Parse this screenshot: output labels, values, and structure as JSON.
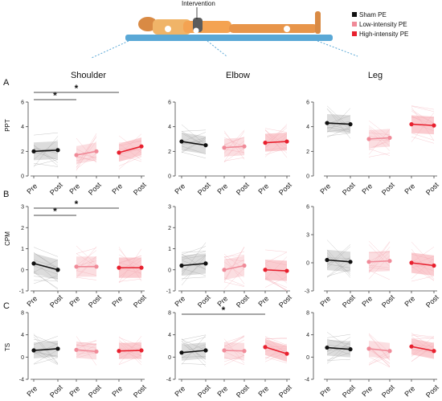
{
  "figure": {
    "intervention_label": "Intervention",
    "legend": [
      {
        "label": "Sham PE",
        "color": "#111111"
      },
      {
        "label": "Low-intensity PE",
        "color": "#f08a98"
      },
      {
        "label": "High-intensity PE",
        "color": "#e8202e"
      }
    ],
    "column_headers": [
      "Shoulder",
      "Elbow",
      "Leg"
    ],
    "row_labels": [
      "A",
      "B",
      "C"
    ],
    "y_labels": [
      "PPT",
      "CPM",
      "TS"
    ],
    "x_tick_labels": [
      "Pre",
      "Post",
      "Pre",
      "Post",
      "Pre",
      "Post"
    ],
    "significance_marker": "*"
  },
  "chart_data": [
    {
      "type": "line",
      "panel": "A-Shoulder",
      "ylabel": "PPT",
      "ylim": [
        0,
        6
      ],
      "yticks": [
        0,
        2,
        4,
        6
      ],
      "categories": [
        "Pre",
        "Post"
      ],
      "series": [
        {
          "name": "Sham PE",
          "values": [
            2.0,
            2.1
          ]
        },
        {
          "name": "Low-intensity PE",
          "values": [
            1.7,
            2.0
          ]
        },
        {
          "name": "High-intensity PE",
          "values": [
            1.9,
            2.4
          ]
        }
      ],
      "annotations": [
        {
          "text": "*",
          "from": "Sham PE Pre",
          "to": "Low-intensity PE Pre"
        },
        {
          "text": "*",
          "from": "Sham PE Pre",
          "to": "High-intensity PE Pre"
        }
      ]
    },
    {
      "type": "line",
      "panel": "A-Elbow",
      "ylim": [
        0,
        6
      ],
      "yticks": [
        0,
        2,
        4,
        6
      ],
      "categories": [
        "Pre",
        "Post"
      ],
      "series": [
        {
          "name": "Sham PE",
          "values": [
            2.8,
            2.5
          ]
        },
        {
          "name": "Low-intensity PE",
          "values": [
            2.3,
            2.4
          ]
        },
        {
          "name": "High-intensity PE",
          "values": [
            2.7,
            2.8
          ]
        }
      ],
      "annotations": []
    },
    {
      "type": "line",
      "panel": "A-Leg",
      "ylim": [
        0,
        6
      ],
      "yticks": [
        0,
        2,
        4,
        6
      ],
      "categories": [
        "Pre",
        "Post"
      ],
      "series": [
        {
          "name": "Sham PE",
          "values": [
            4.3,
            4.2
          ]
        },
        {
          "name": "Low-intensity PE",
          "values": [
            3.0,
            3.1
          ]
        },
        {
          "name": "High-intensity PE",
          "values": [
            4.2,
            4.1
          ]
        }
      ],
      "annotations": []
    },
    {
      "type": "line",
      "panel": "B-Shoulder",
      "ylabel": "CPM",
      "ylim": [
        -1,
        3
      ],
      "yticks": [
        -1,
        0,
        1,
        2,
        3
      ],
      "categories": [
        "Pre",
        "Post"
      ],
      "series": [
        {
          "name": "Sham PE",
          "values": [
            0.3,
            0.0
          ]
        },
        {
          "name": "Low-intensity PE",
          "values": [
            0.15,
            0.15
          ]
        },
        {
          "name": "High-intensity PE",
          "values": [
            0.1,
            0.1
          ]
        }
      ],
      "annotations": [
        {
          "text": "*",
          "from": "Sham PE Pre",
          "to": "Low-intensity PE Pre"
        },
        {
          "text": "*",
          "from": "Sham PE Pre",
          "to": "High-intensity PE Pre"
        }
      ]
    },
    {
      "type": "line",
      "panel": "B-Elbow",
      "ylim": [
        -1,
        3
      ],
      "yticks": [
        -1,
        0,
        1,
        2,
        3
      ],
      "categories": [
        "Pre",
        "Post"
      ],
      "series": [
        {
          "name": "Sham PE",
          "values": [
            0.2,
            0.3
          ]
        },
        {
          "name": "Low-intensity PE",
          "values": [
            0.0,
            0.2
          ]
        },
        {
          "name": "High-intensity PE",
          "values": [
            0.0,
            -0.05
          ]
        }
      ],
      "annotations": []
    },
    {
      "type": "line",
      "panel": "B-Leg",
      "ylim": [
        -3,
        6
      ],
      "yticks": [
        -3,
        0,
        3,
        6
      ],
      "categories": [
        "Pre",
        "Post"
      ],
      "series": [
        {
          "name": "Sham PE",
          "values": [
            0.3,
            0.1
          ]
        },
        {
          "name": "Low-intensity PE",
          "values": [
            0.1,
            0.2
          ]
        },
        {
          "name": "High-intensity PE",
          "values": [
            0.0,
            -0.3
          ]
        }
      ],
      "annotations": []
    },
    {
      "type": "line",
      "panel": "C-Shoulder",
      "ylabel": "TS",
      "ylim": [
        -4,
        8
      ],
      "yticks": [
        -4,
        0,
        4,
        8
      ],
      "categories": [
        "Pre",
        "Post"
      ],
      "series": [
        {
          "name": "Sham PE",
          "values": [
            1.2,
            1.5
          ]
        },
        {
          "name": "Low-intensity PE",
          "values": [
            1.3,
            1.0
          ]
        },
        {
          "name": "High-intensity PE",
          "values": [
            1.1,
            1.2
          ]
        }
      ],
      "annotations": []
    },
    {
      "type": "line",
      "panel": "C-Elbow",
      "ylim": [
        -4,
        8
      ],
      "yticks": [
        -4,
        0,
        4,
        8
      ],
      "categories": [
        "Pre",
        "Post"
      ],
      "series": [
        {
          "name": "Sham PE",
          "values": [
            0.8,
            1.2
          ]
        },
        {
          "name": "Low-intensity PE",
          "values": [
            1.2,
            1.1
          ]
        },
        {
          "name": "High-intensity PE",
          "values": [
            1.8,
            0.6
          ]
        }
      ],
      "annotations": [
        {
          "text": "*",
          "from": "Sham PE Pre",
          "to": "High-intensity PE Pre"
        }
      ]
    },
    {
      "type": "line",
      "panel": "C-Leg",
      "ylim": [
        -4,
        8
      ],
      "yticks": [
        -4,
        0,
        4,
        8
      ],
      "categories": [
        "Pre",
        "Post"
      ],
      "series": [
        {
          "name": "Sham PE",
          "values": [
            1.7,
            1.4
          ]
        },
        {
          "name": "Low-intensity PE",
          "values": [
            1.5,
            1.1
          ]
        },
        {
          "name": "High-intensity PE",
          "values": [
            1.9,
            1.1
          ]
        }
      ],
      "annotations": []
    }
  ]
}
